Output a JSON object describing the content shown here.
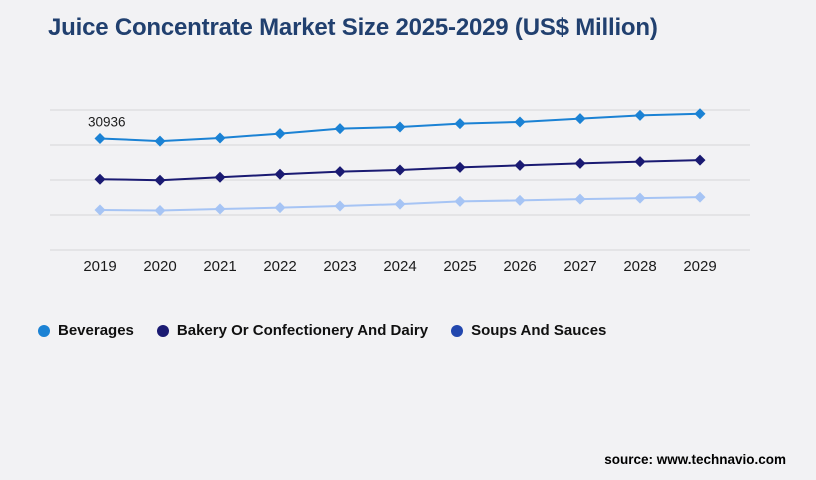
{
  "title": "Juice Concentrate Market Size 2025-2029 (US$ Million)",
  "source": "source: www.technavio.com",
  "colors": {
    "background": "#f2f2f4",
    "title": "#21406f",
    "gridline": "#d5d5d8",
    "axis_label": "#1a1a1a",
    "data_label": "#1c1c1c",
    "legend_label": "#101010"
  },
  "chart_data": {
    "type": "line",
    "title": "Juice Concentrate Market Size 2025-2029 (US$ Million)",
    "xlabel": "",
    "ylabel": "",
    "x": [
      2019,
      2020,
      2021,
      2022,
      2023,
      2024,
      2025,
      2026,
      2027,
      2028,
      2029
    ],
    "ylim": [
      15000,
      35000
    ],
    "y_gridline_step": 5000,
    "grid": true,
    "legend_position": "bottom-left",
    "marker": "diamond",
    "series": [
      {
        "name": "Beverages",
        "color": "#1b82d4",
        "legend_color": "#1b82d4",
        "values": [
          30936,
          30560,
          31000,
          31630,
          32340,
          32580,
          33050,
          33290,
          33760,
          34230,
          34470
        ]
      },
      {
        "name": "Bakery Or Confectionery And Dairy",
        "color": "#1a1a72",
        "legend_color": "#1a1a72",
        "values": [
          25110,
          24970,
          25390,
          25820,
          26200,
          26430,
          26810,
          27090,
          27380,
          27620,
          27840
        ]
      },
      {
        "name": "Soups And Sauces",
        "color": "#a6c4f4",
        "legend_color": "#2247ae",
        "values": [
          20710,
          20640,
          20850,
          21060,
          21280,
          21560,
          21940,
          22090,
          22270,
          22410,
          22550
        ]
      }
    ],
    "annotation": {
      "text": "30936",
      "series": "Beverages",
      "x": 2019
    }
  }
}
